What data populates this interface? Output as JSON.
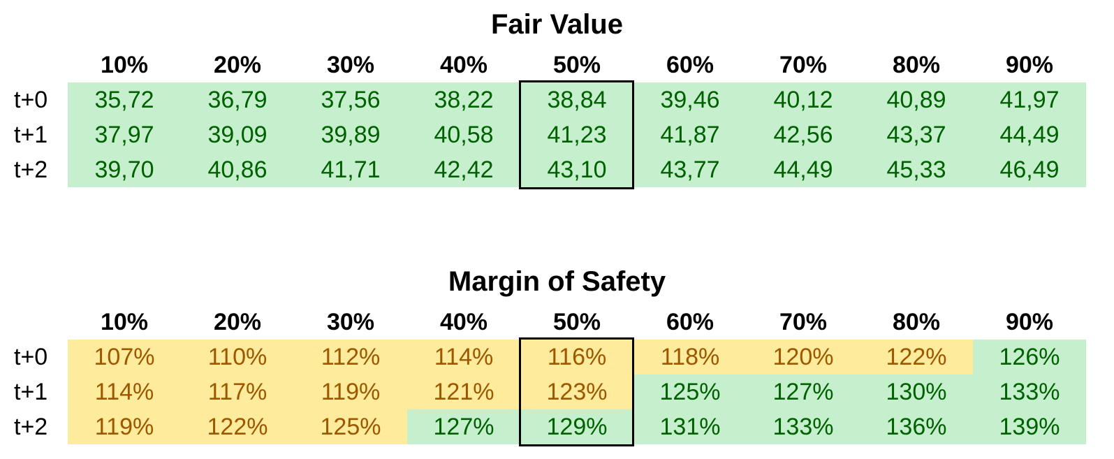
{
  "fair_value": {
    "title": "Fair Value",
    "columns": [
      "10%",
      "20%",
      "30%",
      "40%",
      "50%",
      "60%",
      "70%",
      "80%",
      "90%"
    ],
    "rows": [
      {
        "label": "t+0",
        "values": [
          "35,72",
          "36,79",
          "37,56",
          "38,22",
          "38,84",
          "39,46",
          "40,12",
          "40,89",
          "41,97"
        ],
        "colors": [
          "green",
          "green",
          "green",
          "green",
          "green",
          "green",
          "green",
          "green",
          "green"
        ]
      },
      {
        "label": "t+1",
        "values": [
          "37,97",
          "39,09",
          "39,89",
          "40,58",
          "41,23",
          "41,87",
          "42,56",
          "43,37",
          "44,49"
        ],
        "colors": [
          "green",
          "green",
          "green",
          "green",
          "green",
          "green",
          "green",
          "green",
          "green"
        ]
      },
      {
        "label": "t+2",
        "values": [
          "39,70",
          "40,86",
          "41,71",
          "42,42",
          "43,10",
          "43,77",
          "44,49",
          "45,33",
          "46,49"
        ],
        "colors": [
          "green",
          "green",
          "green",
          "green",
          "green",
          "green",
          "green",
          "green",
          "green"
        ]
      }
    ]
  },
  "margin_of_safety": {
    "title": "Margin of Safety",
    "columns": [
      "10%",
      "20%",
      "30%",
      "40%",
      "50%",
      "60%",
      "70%",
      "80%",
      "90%"
    ],
    "rows": [
      {
        "label": "t+0",
        "values": [
          "107%",
          "110%",
          "112%",
          "114%",
          "116%",
          "118%",
          "120%",
          "122%",
          "126%"
        ],
        "colors": [
          "yellow",
          "yellow",
          "yellow",
          "yellow",
          "yellow",
          "yellow",
          "yellow",
          "yellow",
          "green"
        ]
      },
      {
        "label": "t+1",
        "values": [
          "114%",
          "117%",
          "119%",
          "121%",
          "123%",
          "125%",
          "127%",
          "130%",
          "133%"
        ],
        "colors": [
          "yellow",
          "yellow",
          "yellow",
          "yellow",
          "yellow",
          "green",
          "green",
          "green",
          "green"
        ]
      },
      {
        "label": "t+2",
        "values": [
          "119%",
          "122%",
          "125%",
          "127%",
          "129%",
          "131%",
          "133%",
          "136%",
          "139%"
        ],
        "colors": [
          "yellow",
          "yellow",
          "yellow",
          "green",
          "green",
          "green",
          "green",
          "green",
          "green"
        ]
      }
    ]
  },
  "highlighted_column": "50%",
  "colors": {
    "green_fill": "#c6efce",
    "green_text": "#006100",
    "yellow_fill": "#ffeb9c",
    "yellow_text": "#9c5700",
    "highlight_border": "#000000"
  }
}
